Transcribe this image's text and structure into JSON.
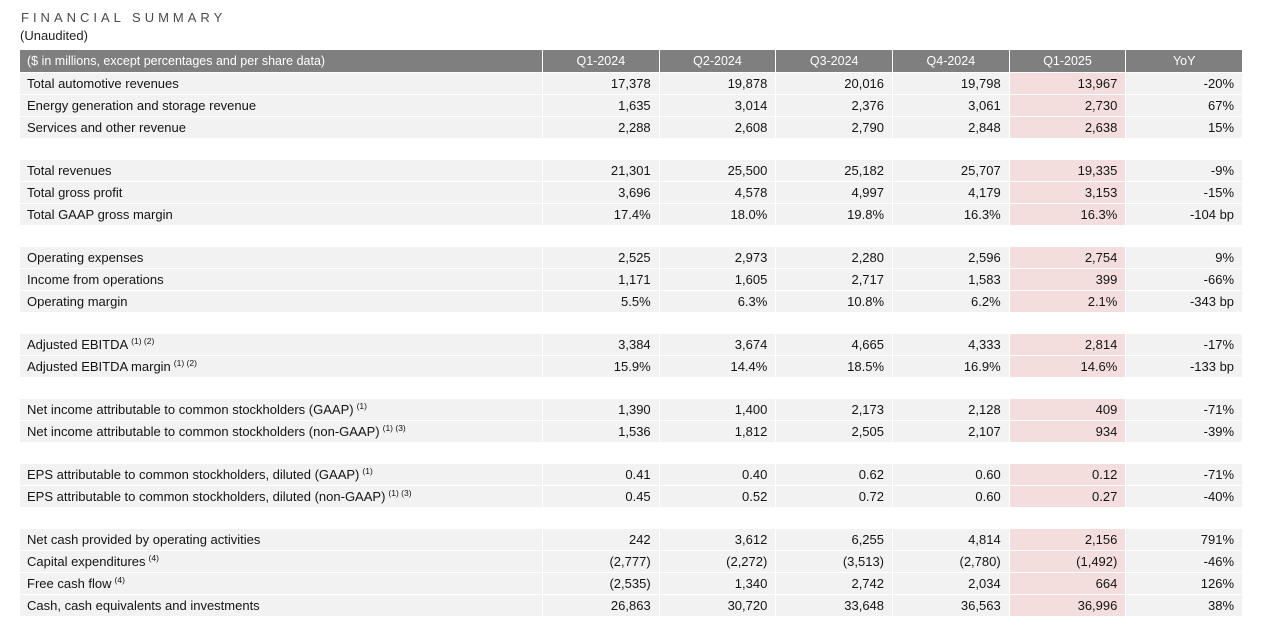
{
  "title": "FINANCIAL SUMMARY",
  "subtitle": "(Unaudited)",
  "colors": {
    "header_background": "#7f7f7f",
    "header_text": "#ffffff",
    "row_background": "#f2f2f2",
    "highlight_column_background": "#f4dedd",
    "body_text": "#141414",
    "title_text": "#4a4a4a"
  },
  "table": {
    "header": {
      "label": "($ in millions, except percentages and per share data)",
      "columns": [
        "Q1-2024",
        "Q2-2024",
        "Q3-2024",
        "Q4-2024",
        "Q1-2025",
        "YoY"
      ],
      "highlighted_column": "Q1-2025"
    },
    "sections": [
      {
        "rows": [
          {
            "label": "Total automotive revenues",
            "sup": "",
            "values": [
              "17,378",
              "19,878",
              "20,016",
              "19,798",
              "13,967",
              "-20%"
            ]
          },
          {
            "label": "Energy generation and storage revenue",
            "sup": "",
            "values": [
              "1,635",
              "3,014",
              "2,376",
              "3,061",
              "2,730",
              "67%"
            ]
          },
          {
            "label": "Services and other revenue",
            "sup": "",
            "values": [
              "2,288",
              "2,608",
              "2,790",
              "2,848",
              "2,638",
              "15%"
            ]
          }
        ]
      },
      {
        "rows": [
          {
            "label": "Total revenues",
            "sup": "",
            "values": [
              "21,301",
              "25,500",
              "25,182",
              "25,707",
              "19,335",
              "-9%"
            ]
          },
          {
            "label": "Total gross profit",
            "sup": "",
            "values": [
              "3,696",
              "4,578",
              "4,997",
              "4,179",
              "3,153",
              "-15%"
            ]
          },
          {
            "label": "Total GAAP gross margin",
            "sup": "",
            "values": [
              "17.4%",
              "18.0%",
              "19.8%",
              "16.3%",
              "16.3%",
              "-104 bp"
            ]
          }
        ]
      },
      {
        "rows": [
          {
            "label": "Operating expenses",
            "sup": "",
            "values": [
              "2,525",
              "2,973",
              "2,280",
              "2,596",
              "2,754",
              "9%"
            ]
          },
          {
            "label": "Income from operations",
            "sup": "",
            "values": [
              "1,171",
              "1,605",
              "2,717",
              "1,583",
              "399",
              "-66%"
            ]
          },
          {
            "label": "Operating margin",
            "sup": "",
            "values": [
              "5.5%",
              "6.3%",
              "10.8%",
              "6.2%",
              "2.1%",
              "-343 bp"
            ]
          }
        ]
      },
      {
        "rows": [
          {
            "label": "Adjusted EBITDA",
            "sup": "(1) (2)",
            "values": [
              "3,384",
              "3,674",
              "4,665",
              "4,333",
              "2,814",
              "-17%"
            ]
          },
          {
            "label": "Adjusted EBITDA margin",
            "sup": "(1) (2)",
            "values": [
              "15.9%",
              "14.4%",
              "18.5%",
              "16.9%",
              "14.6%",
              "-133 bp"
            ]
          }
        ]
      },
      {
        "rows": [
          {
            "label": "Net income attributable to common stockholders (GAAP)",
            "sup": "(1)",
            "values": [
              "1,390",
              "1,400",
              "2,173",
              "2,128",
              "409",
              "-71%"
            ]
          },
          {
            "label": "Net income attributable to common stockholders (non-GAAP)",
            "sup": "(1) (3)",
            "values": [
              "1,536",
              "1,812",
              "2,505",
              "2,107",
              "934",
              "-39%"
            ]
          }
        ]
      },
      {
        "rows": [
          {
            "label": "EPS attributable to common stockholders, diluted (GAAP)",
            "sup": "(1)",
            "values": [
              "0.41",
              "0.40",
              "0.62",
              "0.60",
              "0.12",
              "-71%"
            ]
          },
          {
            "label": "EPS attributable to common stockholders, diluted (non-GAAP)",
            "sup": "(1) (3)",
            "values": [
              "0.45",
              "0.52",
              "0.72",
              "0.60",
              "0.27",
              "-40%"
            ]
          }
        ]
      },
      {
        "rows": [
          {
            "label": "Net cash provided by operating activities",
            "sup": "",
            "values": [
              "242",
              "3,612",
              "6,255",
              "4,814",
              "2,156",
              "791%"
            ]
          },
          {
            "label": "Capital expenditures",
            "sup": "(4)",
            "values": [
              "(2,777)",
              "(2,272)",
              "(3,513)",
              "(2,780)",
              "(1,492)",
              "-46%"
            ]
          },
          {
            "label": "Free cash flow",
            "sup": "(4)",
            "values": [
              "(2,535)",
              "1,340",
              "2,742",
              "2,034",
              "664",
              "126%"
            ]
          },
          {
            "label": "Cash, cash equivalents and investments",
            "sup": "",
            "values": [
              "26,863",
              "30,720",
              "33,648",
              "36,563",
              "36,996",
              "38%"
            ]
          }
        ]
      }
    ]
  }
}
